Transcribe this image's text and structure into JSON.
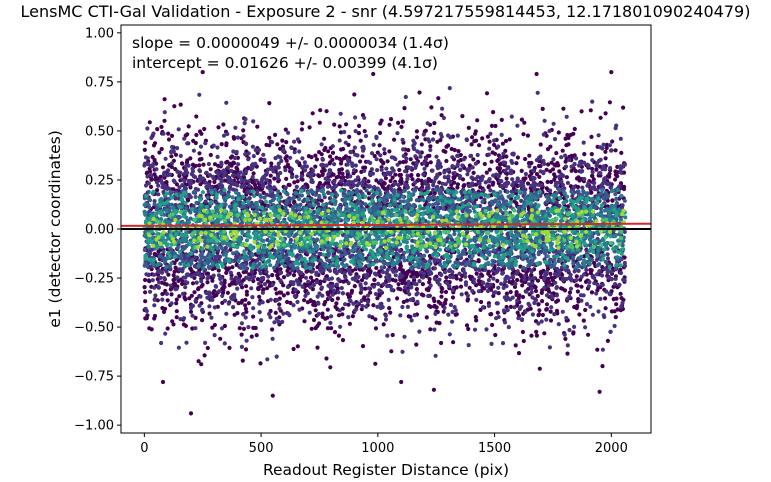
{
  "chart_data": {
    "type": "scatter",
    "title": "LensMC CTI-Gal Validation - Exposure 2 - snr (4.597217559814453, 12.171801090240479)",
    "xlabel": "Readout Register Distance (pix)",
    "ylabel": "e1 (detector coordinates)",
    "xlim": [
      -100,
      2170
    ],
    "ylim": [
      -1.04,
      1.04
    ],
    "x_ticks": [
      0,
      500,
      1000,
      1500,
      2000
    ],
    "x_tick_labels": [
      "0",
      "500",
      "1000",
      "1500",
      "2000"
    ],
    "y_ticks": [
      -1.0,
      -0.75,
      -0.5,
      -0.25,
      0.0,
      0.25,
      0.5,
      0.75,
      1.0
    ],
    "y_tick_labels": [
      "−1.00",
      "−0.75",
      "−0.50",
      "−0.25",
      "0.00",
      "0.25",
      "0.50",
      "0.75",
      "1.00"
    ],
    "grid": false,
    "annotations": [
      "slope = 0.0000049 +/- 0.0000034 (1.4σ)",
      "intercept = 0.01626 +/- 0.00399 (4.1σ)"
    ],
    "fit": {
      "slope": 4.9e-06,
      "intercept": 0.01626,
      "color": "#d62728"
    },
    "reference_line": {
      "y": 0.0,
      "color": "#000000"
    },
    "points": {
      "x_range": [
        0,
        2060
      ],
      "approx_count": 8000,
      "y_center": 0.0,
      "y_core_spread": 0.22,
      "colormap": "viridis (point density)",
      "colors": [
        "#440154",
        "#46327e",
        "#365c8d",
        "#277f8e",
        "#1fa187",
        "#4ac16d",
        "#a0da39"
      ],
      "outliers": [
        {
          "x": 200,
          "y": -0.94
        },
        {
          "x": 1680,
          "y": 0.79
        },
        {
          "x": 2000,
          "y": 0.8
        },
        {
          "x": 250,
          "y": 0.8
        },
        {
          "x": 980,
          "y": 0.79
        },
        {
          "x": 80,
          "y": -0.78
        },
        {
          "x": 1100,
          "y": -0.78
        },
        {
          "x": 1950,
          "y": -0.83
        },
        {
          "x": 550,
          "y": -0.85
        },
        {
          "x": 1240,
          "y": -0.82
        }
      ]
    }
  }
}
